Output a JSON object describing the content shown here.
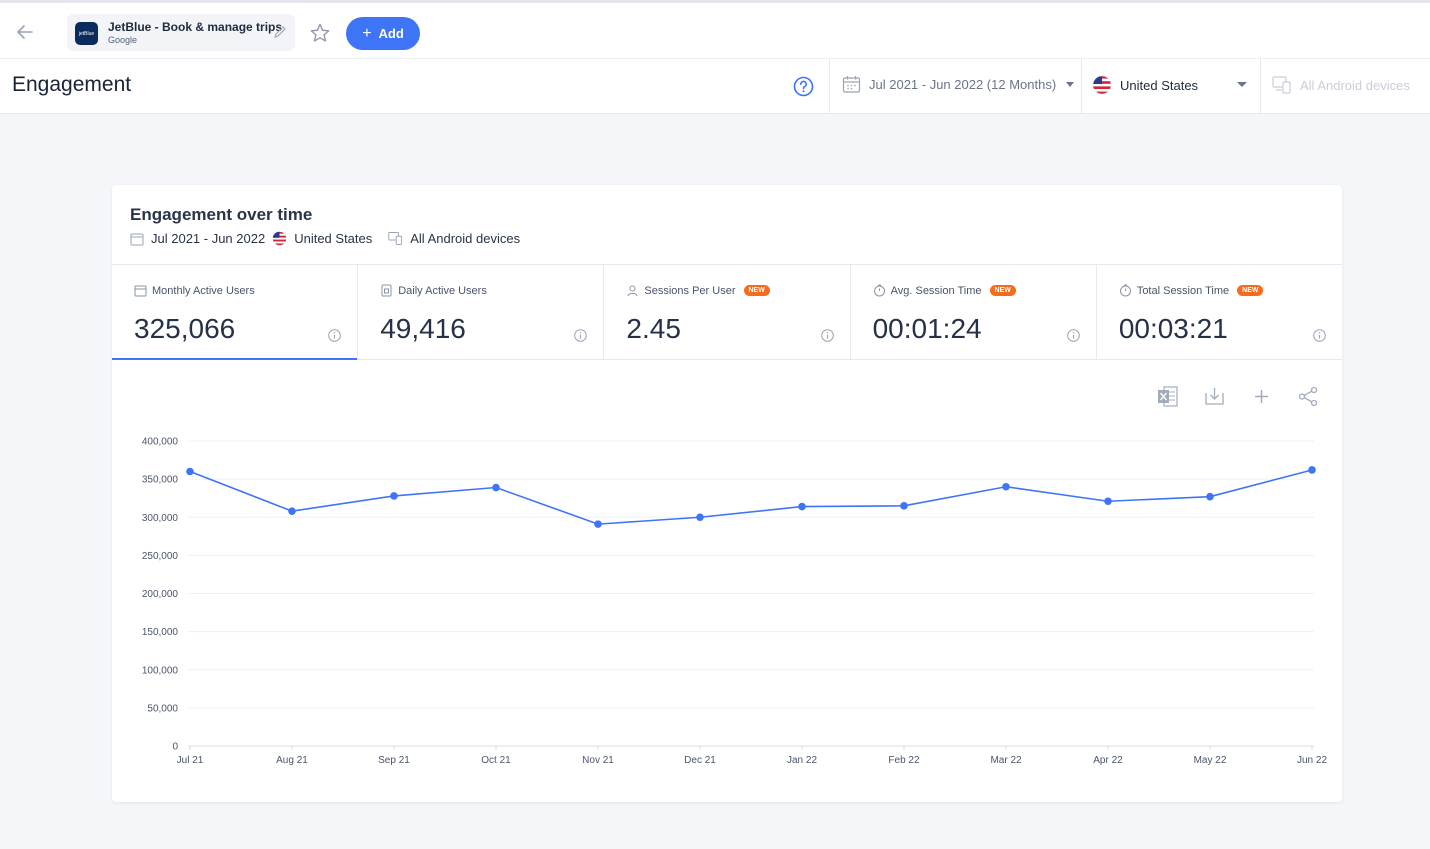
{
  "topbar": {
    "app_name": "JetBlue - Book & manage trips",
    "app_store": "Google",
    "app_logo_text": "jetBlue",
    "add_label": "Add"
  },
  "header": {
    "title": "Engagement",
    "date_range": "Jul 2021 - Jun 2022 (12 Months)",
    "country": "United States",
    "device": "All Android devices"
  },
  "card": {
    "title": "Engagement over time",
    "sub_date": "Jul 2021 - Jun 2022",
    "sub_country": "United States",
    "sub_device": "All Android devices"
  },
  "metrics": [
    {
      "label": "Monthly Active Users",
      "value": "325,066",
      "badge": "",
      "icon": "calendar-icon"
    },
    {
      "label": "Daily Active Users",
      "value": "49,416",
      "badge": "",
      "icon": "daily-calendar-icon"
    },
    {
      "label": "Sessions Per User",
      "value": "2.45",
      "badge": "NEW",
      "icon": "user-icon"
    },
    {
      "label": "Avg. Session Time",
      "value": "00:01:24",
      "badge": "NEW",
      "icon": "timer-icon"
    },
    {
      "label": "Total Session Time",
      "value": "00:03:21",
      "badge": "NEW",
      "icon": "timer-icon"
    }
  ],
  "colors": {
    "accent": "#3e74f6",
    "badge": "#f76b1c",
    "line": "#3e74f6"
  },
  "chart_data": {
    "type": "line",
    "categories": [
      "Jul 21",
      "Aug 21",
      "Sep 21",
      "Oct 21",
      "Nov 21",
      "Dec 21",
      "Jan 22",
      "Feb 22",
      "Mar 22",
      "Apr 22",
      "May 22",
      "Jun 22"
    ],
    "series": [
      {
        "values": [
          360000,
          308000,
          328000,
          339000,
          291000,
          300000,
          314000,
          315000,
          340000,
          321000,
          327000,
          362000
        ]
      }
    ],
    "ylim": [
      0,
      400000
    ],
    "yticks": [
      0,
      50000,
      100000,
      150000,
      200000,
      250000,
      300000,
      350000,
      400000
    ],
    "ytick_labels": [
      "0",
      "50,000",
      "100,000",
      "150,000",
      "200,000",
      "250,000",
      "300,000",
      "350,000",
      "400,000"
    ],
    "grid": true,
    "legend": "none"
  }
}
